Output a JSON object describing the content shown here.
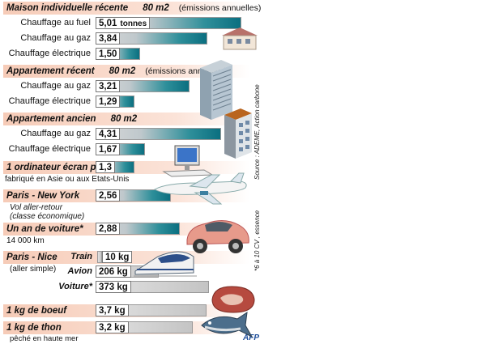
{
  "chart_data": {
    "type": "bar",
    "sections": [
      {
        "title": "Maison individuelle récente",
        "area": "80 m2",
        "note": "(émissions annuelles)",
        "rows": [
          {
            "label": "Chauffage au fuel",
            "value": "5,01",
            "unit": "tonnes",
            "v": 5.01
          },
          {
            "label": "Chauffage au gaz",
            "value": "3,84",
            "v": 3.84
          },
          {
            "label": "Chauffage électrique",
            "value": "1,50",
            "v": 1.5
          }
        ]
      },
      {
        "title": "Appartement récent",
        "area": "80 m2",
        "note": "(émissions annuelles)",
        "rows": [
          {
            "label": "Chauffage au gaz",
            "value": "3,21",
            "v": 3.21
          },
          {
            "label": "Chauffage électrique",
            "value": "1,29",
            "v": 1.29
          }
        ]
      },
      {
        "title": "Appartement ancien",
        "area": "80 m2",
        "note": "",
        "rows": [
          {
            "label": "Chauffage au gaz",
            "value": "4,31",
            "v": 4.31
          },
          {
            "label": "Chauffage électrique",
            "value": "1,67",
            "v": 1.67
          }
        ]
      }
    ],
    "computer": {
      "title": "1 ordinateur écran plat",
      "sub": "fabriqué en Asie ou aux Etats-Unis",
      "value": "1,3",
      "v": 1.3
    },
    "flight": {
      "title": "Paris - New York",
      "sub": "Vol aller-retour\n(classe économique)",
      "value": "2,56",
      "v": 2.56
    },
    "car": {
      "title": "Un an de voiture*",
      "sub": "14 000 km",
      "value": "2,88",
      "v": 2.88
    },
    "trip": {
      "title": "Paris - Nice",
      "sub": "(aller simple)",
      "rows": [
        {
          "label": "Train",
          "value": "10 kg",
          "v": 0.01
        },
        {
          "label": "Avion",
          "value": "206 kg",
          "v": 0.206
        },
        {
          "label": "Voiture*",
          "value": "373 kg",
          "v": 0.373
        }
      ]
    },
    "beef": {
      "title": "1 kg de boeuf",
      "value": "3,7 kg",
      "v": 0.0037
    },
    "tuna": {
      "title": "1 kg de thon",
      "sub": "pêché en haute mer",
      "value": "3,2 kg",
      "v": 0.0032
    },
    "source": "Source : ADEME, Action carbone",
    "footnote": "*6 à 10 CV , essence",
    "credit": "AFP"
  }
}
